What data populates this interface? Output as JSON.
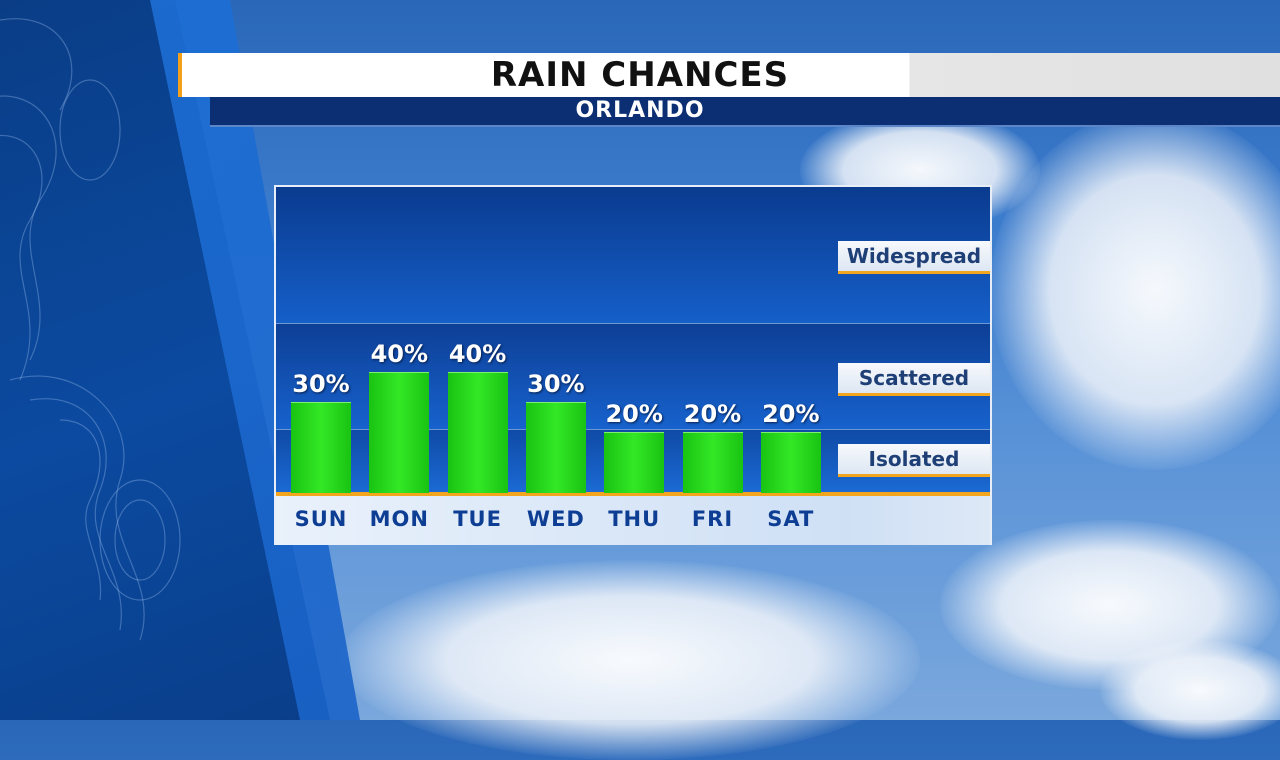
{
  "header": {
    "title": "RAIN CHANCES",
    "subtitle": "ORLANDO"
  },
  "colors": {
    "bar": "#22d41a",
    "accent": "#f2a51d",
    "frame": "#0b3f95"
  },
  "chart_data": {
    "type": "bar",
    "title": "RAIN CHANCES",
    "subtitle": "ORLANDO",
    "categories": [
      "SUN",
      "MON",
      "TUE",
      "WED",
      "THU",
      "FRI",
      "SAT"
    ],
    "values": [
      30,
      40,
      40,
      30,
      20,
      20,
      20
    ],
    "value_labels": [
      "30%",
      "40%",
      "40%",
      "30%",
      "20%",
      "20%",
      "20%"
    ],
    "unit": "%",
    "ylim": [
      0,
      100
    ],
    "category_bands": [
      "Widespread",
      "Scattered",
      "Isolated"
    ]
  }
}
